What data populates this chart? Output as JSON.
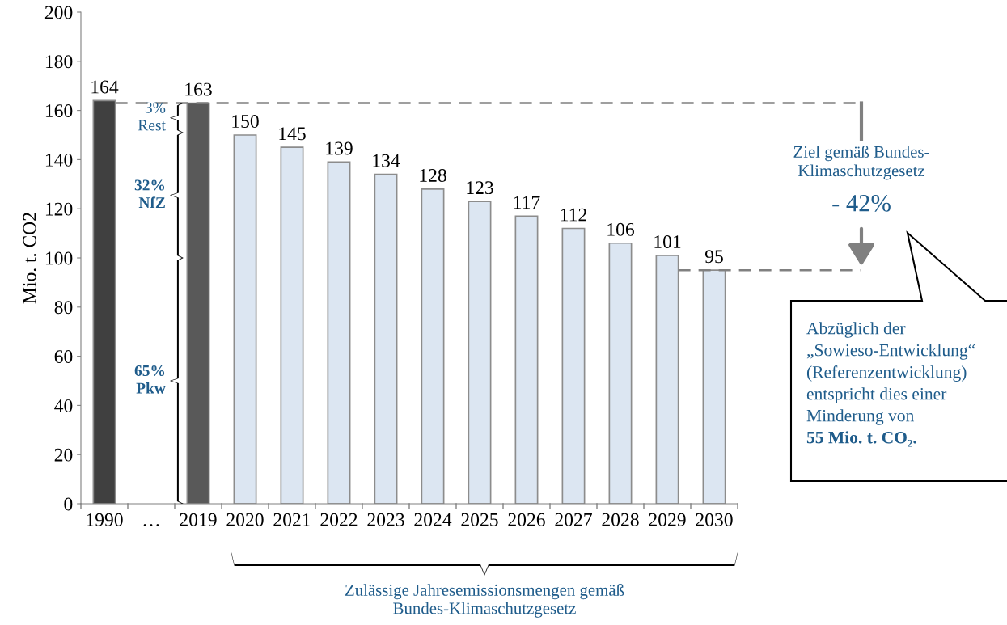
{
  "chart_data": {
    "type": "bar",
    "ylabel": "Mio. t. CO2",
    "categories": [
      "1990",
      "…",
      "2019",
      "2020",
      "2021",
      "2022",
      "2023",
      "2024",
      "2025",
      "2026",
      "2027",
      "2028",
      "2029",
      "2030"
    ],
    "values": [
      164,
      null,
      163,
      150,
      145,
      139,
      134,
      128,
      123,
      117,
      112,
      106,
      101,
      95
    ],
    "colors": [
      "#404040",
      "#404040",
      "#595959",
      "#dce6f2",
      "#dce6f2",
      "#dce6f2",
      "#dce6f2",
      "#dce6f2",
      "#dce6f2",
      "#dce6f2",
      "#dce6f2",
      "#dce6f2",
      "#dce6f2",
      "#dce6f2"
    ],
    "data_labels": true,
    "ylim": [
      0,
      200
    ],
    "yticks": [
      0,
      20,
      40,
      60,
      80,
      100,
      120,
      140,
      160,
      180,
      200
    ],
    "ref_lines": [
      {
        "axis": "y",
        "value": 163,
        "color": "#808080",
        "line_style": "dashed"
      },
      {
        "axis": "y",
        "value": 95,
        "color": "#808080",
        "line_style": "dashed"
      }
    ],
    "annotations": [
      "3%\nRest",
      "32%\nNfZ",
      "65%\nPkw",
      "Ziel gemäß Bundes-\nKlimaschutzgesetz",
      "- 42%",
      "Abzüglich der\n„Sowieso-Entwicklung“\n(Referenzentwicklung)\nentspricht dies einer\nMinderung von\n55 Mio. t. CO₂.",
      "Zulässige Jahresemissionsmengen gemäß\nBundes-Klimaschutzgesetz"
    ]
  }
}
